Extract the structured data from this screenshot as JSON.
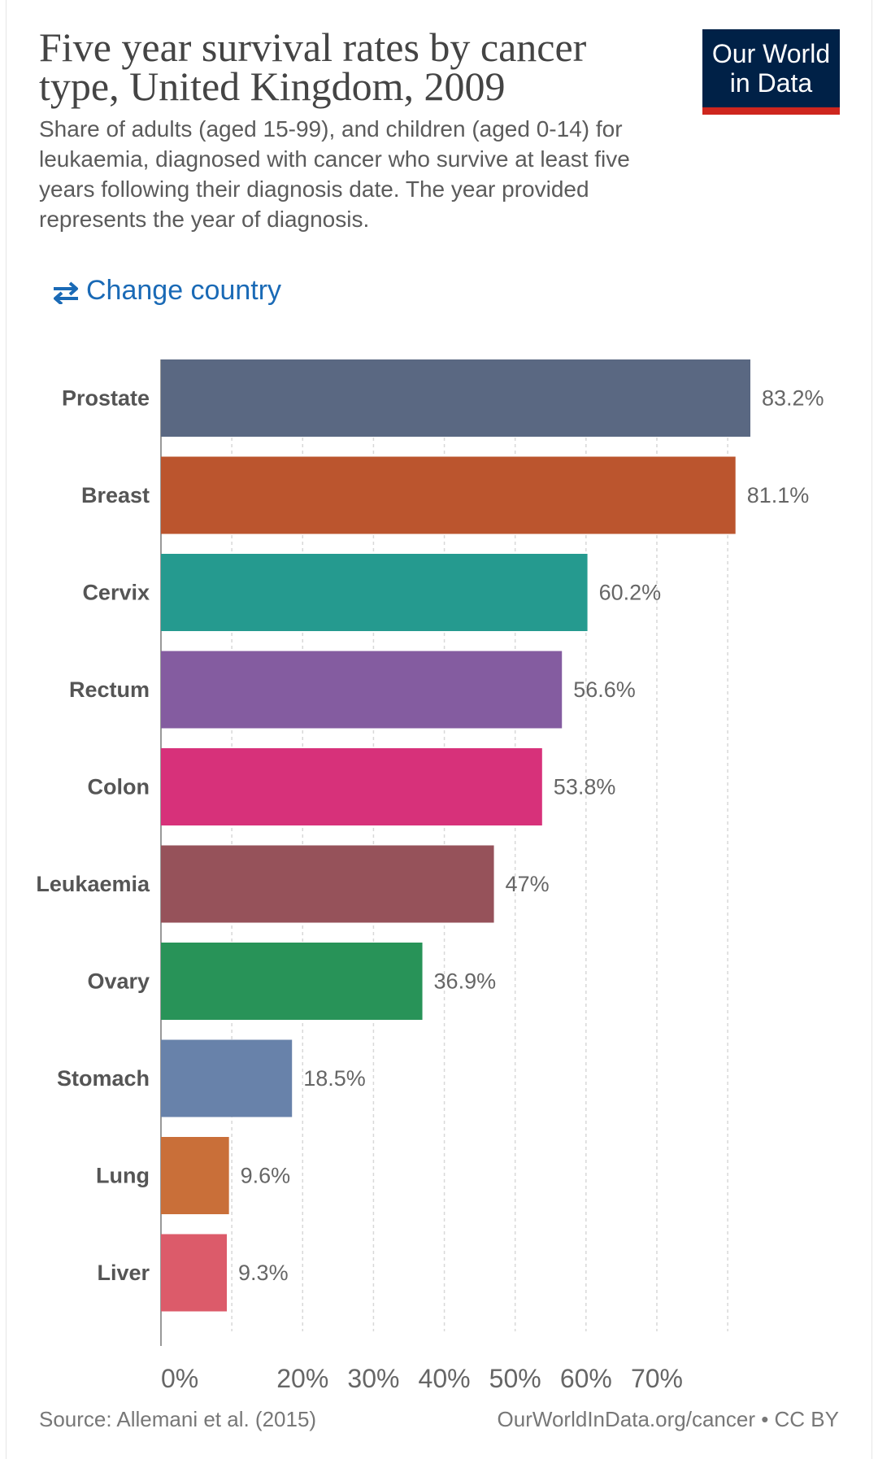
{
  "header": {
    "title": "Five year survival rates by cancer type, United Kingdom, 2009",
    "subtitle": "Share of adults (aged 15-99), and children (aged 0-14) for leukaemia, diagnosed with cancer who survive at least five years following their diagnosis date. The year provided represents the year of diagnosis.",
    "logo_line1": "Our World",
    "logo_line2": "in Data",
    "change_country_label": "Change country",
    "change_country_icon": "swap-arrows-icon"
  },
  "colors": {
    "title": "#444444",
    "link": "#1a6ab6",
    "logo_bg": "#002147",
    "logo_accent": "#ce261e"
  },
  "chart_data": {
    "type": "bar",
    "orientation": "horizontal",
    "title": "Five year survival rates by cancer type, United Kingdom, 2009",
    "xlabel": "",
    "ylabel": "",
    "categories": [
      "Prostate",
      "Breast",
      "Cervix",
      "Rectum",
      "Colon",
      "Leukaemia",
      "Ovary",
      "Stomach",
      "Lung",
      "Liver"
    ],
    "values": [
      83.2,
      81.1,
      60.2,
      56.6,
      53.8,
      47,
      36.9,
      18.5,
      9.6,
      9.3
    ],
    "value_labels": [
      "83.2%",
      "81.1%",
      "60.2%",
      "56.6%",
      "53.8%",
      "47%",
      "36.9%",
      "18.5%",
      "9.6%",
      "9.3%"
    ],
    "colors": [
      "#5a6882",
      "#bb552e",
      "#259a8f",
      "#845ca0",
      "#d7317a",
      "#96525a",
      "#289358",
      "#6882aa",
      "#c96f39",
      "#dc5b6a"
    ],
    "xlim": [
      0,
      83.2
    ],
    "x_ticks": [
      0,
      20,
      30,
      40,
      50,
      60,
      70
    ],
    "x_tick_labels": [
      "0%",
      "20%",
      "30%",
      "40%",
      "50%",
      "60%",
      "70%"
    ],
    "gridlines": [
      10,
      20,
      30,
      40,
      50,
      60,
      70,
      80
    ],
    "grid": true
  },
  "footer": {
    "source": "Source: Allemani et al. (2015)",
    "url_license": "OurWorldInData.org/cancer • CC BY"
  }
}
